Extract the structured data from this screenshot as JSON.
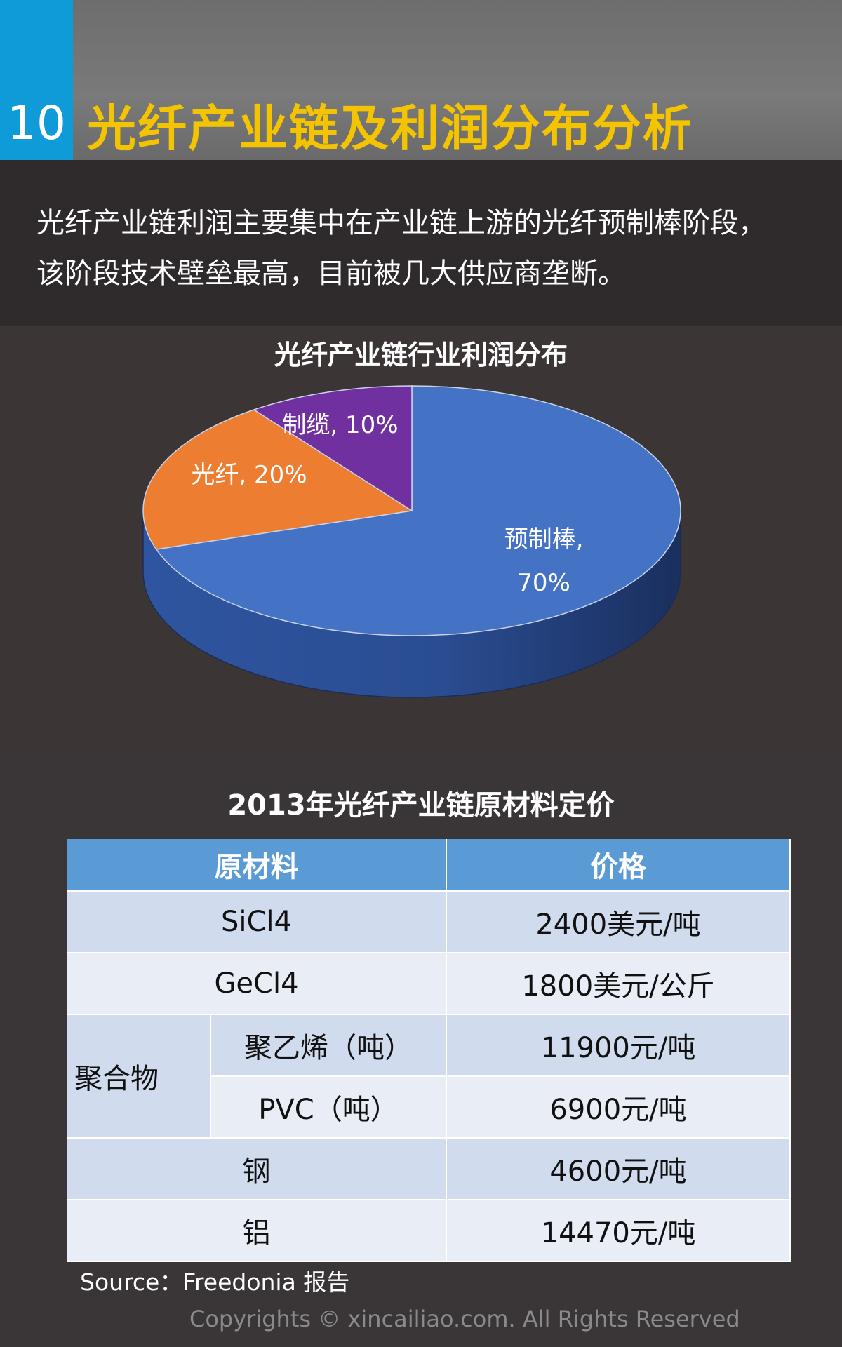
{
  "header": {
    "number": "10",
    "title": "光纤产业链及利润分布分析",
    "colors": {
      "number_bg": "#0f9bd8",
      "title": "#f5c400"
    }
  },
  "intro": {
    "line1": "光纤产业链利润主要集中在产业链上游的光纤预制棒阶段，",
    "line2": "该阶段技术壁垒最高，目前被几大供应商垄断。"
  },
  "chart_data": {
    "type": "pie",
    "title": "光纤产业链行业利润分布",
    "slices": [
      {
        "name": "预制棒",
        "value": 70,
        "label_line1": "预制棒,",
        "label_line2": "70%",
        "color": "#4472c4"
      },
      {
        "name": "光纤",
        "value": 20,
        "label_line1": "光纤, 20%",
        "label_line2": "",
        "color": "#ed7d31"
      },
      {
        "name": "制缆",
        "value": 10,
        "label_line1": "制缆, 10%",
        "label_line2": "",
        "color": "#7030a0"
      }
    ],
    "style": "3d"
  },
  "table": {
    "title": "2013年光纤产业链原材料定价",
    "headers": [
      "原材料",
      "价格"
    ],
    "rows": [
      {
        "material": "SiCl4",
        "price": "2400美元/吨"
      },
      {
        "material": "GeCl4",
        "price": "1800美元/公斤"
      },
      {
        "group": "聚合物",
        "material": "聚乙烯（吨）",
        "price": "11900元/吨"
      },
      {
        "material": "PVC（吨）",
        "price": "6900元/吨"
      },
      {
        "material": "钢",
        "price": "4600元/吨"
      },
      {
        "material": "铝",
        "price": "14470元/吨"
      }
    ]
  },
  "footer": {
    "source": "Source：Freedonia 报告",
    "copyright": "Copyrights © xincailiao.com. All Rights Reserved"
  }
}
